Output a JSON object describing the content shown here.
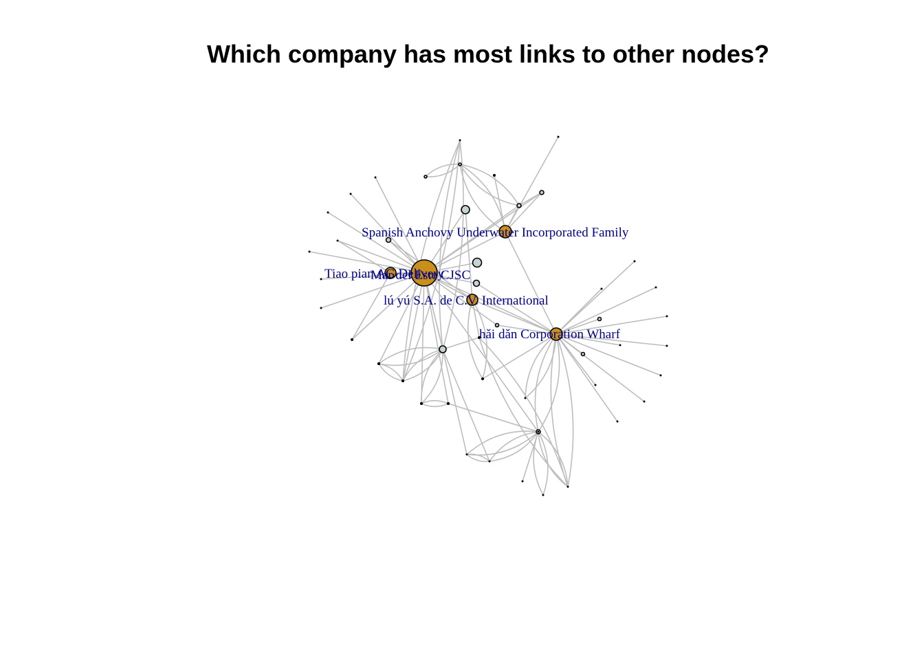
{
  "title": "Which company has most links to other nodes?",
  "colors": {
    "hub": "#c8901a",
    "node": "#c7d3d3",
    "edge": "#bdbdbd",
    "label": "#00008b"
  },
  "labels": [
    "Spanish Anchovy Underwater Incorporated Family",
    "Tiao pian AG Delivery",
    "Mar del Este CJSC",
    "lú yú S.A. de C.V. International",
    "hǎi dǎn Corporation Wharf"
  ],
  "nodes": [
    {
      "id": "mar",
      "kind": "hub"
    },
    {
      "id": "tiao",
      "kind": "hub"
    },
    {
      "id": "luyu",
      "kind": "hub"
    },
    {
      "id": "spanish",
      "kind": "hub"
    },
    {
      "id": "haidan",
      "kind": "hub"
    },
    {
      "id": "c1",
      "kind": "node"
    },
    {
      "id": "c2",
      "kind": "node"
    },
    {
      "id": "c3",
      "kind": "node"
    },
    {
      "id": "c4",
      "kind": "node"
    },
    {
      "id": "c5",
      "kind": "node"
    },
    {
      "id": "c6",
      "kind": "node"
    },
    {
      "id": "c7",
      "kind": "node"
    },
    {
      "id": "c8",
      "kind": "node"
    },
    {
      "id": "c9",
      "kind": "node"
    },
    {
      "id": "c10",
      "kind": "node"
    },
    {
      "id": "c11",
      "kind": "node"
    },
    {
      "id": "c12",
      "kind": "node"
    },
    {
      "id": "c13",
      "kind": "node"
    },
    {
      "id": "m1",
      "kind": "leaf"
    },
    {
      "id": "m2",
      "kind": "leaf"
    },
    {
      "id": "m3",
      "kind": "leaf"
    },
    {
      "id": "m4",
      "kind": "leaf"
    },
    {
      "id": "m5",
      "kind": "leaf"
    },
    {
      "id": "m6",
      "kind": "leaf"
    },
    {
      "id": "m7",
      "kind": "leaf"
    },
    {
      "id": "m8",
      "kind": "leaf"
    },
    {
      "id": "m9",
      "kind": "leaf"
    },
    {
      "id": "m10",
      "kind": "leaf"
    },
    {
      "id": "m11",
      "kind": "leaf"
    },
    {
      "id": "m12",
      "kind": "leaf"
    },
    {
      "id": "s1",
      "kind": "leaf"
    },
    {
      "id": "s2",
      "kind": "leaf"
    },
    {
      "id": "h1",
      "kind": "leaf"
    },
    {
      "id": "h2",
      "kind": "leaf"
    },
    {
      "id": "h3",
      "kind": "leaf"
    },
    {
      "id": "h4",
      "kind": "leaf"
    },
    {
      "id": "h5",
      "kind": "leaf"
    },
    {
      "id": "h6",
      "kind": "leaf"
    },
    {
      "id": "h7",
      "kind": "leaf"
    },
    {
      "id": "h8",
      "kind": "leaf"
    },
    {
      "id": "h9",
      "kind": "leaf"
    },
    {
      "id": "h10",
      "kind": "leaf"
    },
    {
      "id": "b1",
      "kind": "leaf"
    },
    {
      "id": "b2",
      "kind": "leaf"
    },
    {
      "id": "b3",
      "kind": "leaf"
    },
    {
      "id": "b4",
      "kind": "leaf"
    },
    {
      "id": "b5",
      "kind": "leaf"
    },
    {
      "id": "b6",
      "kind": "leaf"
    },
    {
      "id": "b7",
      "kind": "leaf"
    },
    {
      "id": "b8",
      "kind": "leaf"
    },
    {
      "id": "b9",
      "kind": "leaf"
    },
    {
      "id": "b10",
      "kind": "leaf"
    },
    {
      "id": "b11",
      "kind": "leaf"
    },
    {
      "id": "b12",
      "kind": "leaf"
    },
    {
      "id": "b13",
      "kind": "leaf"
    },
    {
      "id": "b14",
      "kind": "leaf"
    }
  ],
  "edges": [
    [
      "mar",
      "m1"
    ],
    [
      "mar",
      "m2"
    ],
    [
      "mar",
      "m3"
    ],
    [
      "mar",
      "m4"
    ],
    [
      "mar",
      "m5"
    ],
    [
      "mar",
      "m6"
    ],
    [
      "mar",
      "m7"
    ],
    [
      "mar",
      "m8"
    ],
    [
      "mar",
      "m9"
    ],
    [
      "mar",
      "m10"
    ],
    [
      "mar",
      "m11"
    ],
    [
      "mar",
      "m12"
    ],
    [
      "mar",
      "tiao"
    ],
    [
      "mar",
      "c1"
    ],
    [
      "mar",
      "c2"
    ],
    [
      "mar",
      "c3"
    ],
    [
      "mar",
      "c4"
    ],
    [
      "mar",
      "c5"
    ],
    [
      "mar",
      "luyu"
    ],
    [
      "mar",
      "spanish"
    ],
    [
      "mar",
      "c6"
    ],
    [
      "mar",
      "c7"
    ],
    [
      "mar",
      "c8"
    ],
    [
      "mar",
      "haidan"
    ],
    [
      "mar",
      "c13"
    ],
    [
      "tiao",
      "m4"
    ],
    [
      "tiao",
      "m8"
    ],
    [
      "luyu",
      "c4"
    ],
    [
      "luyu",
      "c5"
    ],
    [
      "luyu",
      "haidan"
    ],
    [
      "luyu",
      "b1"
    ],
    [
      "luyu",
      "b2"
    ],
    [
      "spanish",
      "s1"
    ],
    [
      "spanish",
      "s2"
    ],
    [
      "spanish",
      "c8"
    ],
    [
      "spanish",
      "c7"
    ],
    [
      "spanish",
      "c9"
    ],
    [
      "spanish",
      "haidan"
    ],
    [
      "c9",
      "c10"
    ],
    [
      "c9",
      "c7"
    ],
    [
      "c7",
      "c8"
    ],
    [
      "haidan",
      "h1"
    ],
    [
      "haidan",
      "h2"
    ],
    [
      "haidan",
      "h3"
    ],
    [
      "haidan",
      "h4"
    ],
    [
      "haidan",
      "h5"
    ],
    [
      "haidan",
      "h6"
    ],
    [
      "haidan",
      "h7"
    ],
    [
      "haidan",
      "h8"
    ],
    [
      "haidan",
      "h9"
    ],
    [
      "haidan",
      "h10"
    ],
    [
      "haidan",
      "c11"
    ],
    [
      "haidan",
      "c12"
    ],
    [
      "haidan",
      "c2"
    ],
    [
      "haidan",
      "b2"
    ],
    [
      "haidan",
      "c3"
    ],
    [
      "haidan",
      "c13"
    ],
    [
      "haidan",
      "b11"
    ],
    [
      "haidan",
      "b3"
    ],
    [
      "c6",
      "b4"
    ],
    [
      "c6",
      "b5"
    ],
    [
      "c6",
      "b6"
    ],
    [
      "c6",
      "b7"
    ],
    [
      "c6",
      "b8"
    ],
    [
      "c6",
      "mar"
    ],
    [
      "c6",
      "b9"
    ],
    [
      "c6",
      "b1"
    ],
    [
      "b4",
      "b5"
    ],
    [
      "b5",
      "b6"
    ],
    [
      "c13",
      "b10"
    ],
    [
      "c13",
      "b11"
    ],
    [
      "c13",
      "b12"
    ],
    [
      "c13",
      "b13"
    ],
    [
      "c13",
      "b14"
    ],
    [
      "c13",
      "b7"
    ],
    [
      "c13",
      "b8"
    ],
    [
      "b1",
      "b11"
    ],
    [
      "b7",
      "b8"
    ],
    [
      "b9",
      "b12"
    ]
  ]
}
